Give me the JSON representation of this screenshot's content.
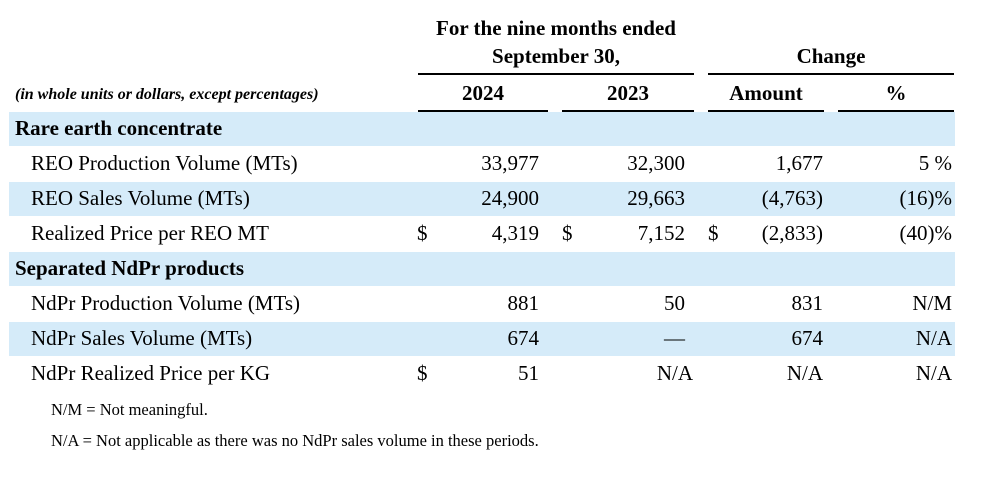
{
  "header": {
    "period_line1": "For the nine months ended",
    "period_line2": "September 30,",
    "change": "Change",
    "units_note": "(in whole units or dollars, except percentages)",
    "col_2024": "2024",
    "col_2023": "2023",
    "col_amount": "Amount",
    "col_pct": "%"
  },
  "sections": [
    {
      "title": "Rare earth concentrate",
      "rows": [
        {
          "label": "REO Production Volume (MTs)",
          "c2024_sym": "",
          "c2024": "33,977",
          "c2023_sym": "",
          "c2023": "32,300",
          "amt_sym": "",
          "amount": "1,677",
          "pct": "5 %"
        },
        {
          "label": "REO Sales Volume (MTs)",
          "c2024_sym": "",
          "c2024": "24,900",
          "c2023_sym": "",
          "c2023": "29,663",
          "amt_sym": "",
          "amount": "(4,763)",
          "pct": "(16)%"
        },
        {
          "label": "Realized Price per REO MT",
          "c2024_sym": "$",
          "c2024": "4,319",
          "c2023_sym": "$",
          "c2023": "7,152",
          "amt_sym": "$",
          "amount": "(2,833)",
          "pct": "(40)%"
        }
      ]
    },
    {
      "title": "Separated NdPr products",
      "rows": [
        {
          "label": "NdPr Production Volume (MTs)",
          "c2024_sym": "",
          "c2024": "881",
          "c2023_sym": "",
          "c2023": "50",
          "amt_sym": "",
          "amount": "831",
          "pct": "N/M"
        },
        {
          "label": "NdPr Sales Volume (MTs)",
          "c2024_sym": "",
          "c2024": "674",
          "c2023_sym": "",
          "c2023": "—",
          "amt_sym": "",
          "amount": "674",
          "pct": "N/A"
        },
        {
          "label": "NdPr Realized Price per KG",
          "c2024_sym": "$",
          "c2024": "51",
          "c2023_sym": "",
          "c2023": "N/A",
          "amt_sym": "",
          "amount": "N/A",
          "pct": "N/A"
        }
      ]
    }
  ],
  "footnotes": [
    "N/M = Not meaningful.",
    "N/A = Not applicable as there was no NdPr sales volume in these periods."
  ]
}
